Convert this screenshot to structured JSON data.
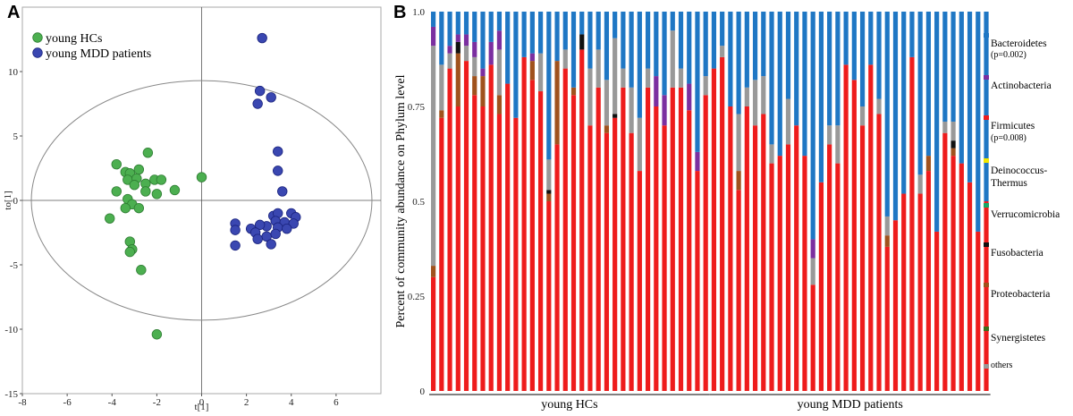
{
  "panels": {
    "a": "A",
    "b": "B"
  },
  "chart_data": [
    {
      "type": "scatter",
      "xlabel": "t[1]",
      "ylabel": "to[1]",
      "xlim": [
        -8,
        8
      ],
      "ylim": [
        -15,
        15
      ],
      "xticks": [
        "-8",
        "-6",
        "-4",
        "-2",
        "0",
        "2",
        "4",
        "6"
      ],
      "yticks": [
        "-15",
        "-10",
        "-5",
        "0",
        "5",
        "10"
      ],
      "ellipse": {
        "cx": 0,
        "cy": 0,
        "rx": 7.6,
        "ry": 9.3
      },
      "series": [
        {
          "name": "young HCs",
          "color": "#4caf50",
          "points": [
            [
              -3.8,
              2.8
            ],
            [
              -3.4,
              2.2
            ],
            [
              -3.2,
              2.1
            ],
            [
              -2.8,
              2.4
            ],
            [
              -3.3,
              1.6
            ],
            [
              -2.9,
              1.7
            ],
            [
              -3.0,
              1.2
            ],
            [
              -2.5,
              1.3
            ],
            [
              -2.1,
              1.6
            ],
            [
              -1.8,
              1.6
            ],
            [
              -2.4,
              3.7
            ],
            [
              -1.2,
              0.8
            ],
            [
              -2.5,
              0.7
            ],
            [
              -3.8,
              0.7
            ],
            [
              -2.0,
              0.5
            ],
            [
              -3.3,
              0.1
            ],
            [
              0,
              1.8
            ],
            [
              -3.1,
              -0.3
            ],
            [
              -3.4,
              -0.6
            ],
            [
              -2.8,
              -0.6
            ],
            [
              -4.1,
              -1.4
            ],
            [
              -3.2,
              -3.2
            ],
            [
              -3.1,
              -3.8
            ],
            [
              -3.2,
              -4.0
            ],
            [
              -2.7,
              -5.4
            ],
            [
              -2.0,
              -10.4
            ]
          ]
        },
        {
          "name": "young MDD patients",
          "color": "#3a47b1",
          "points": [
            [
              2.7,
              12.6
            ],
            [
              2.6,
              8.5
            ],
            [
              3.1,
              8.0
            ],
            [
              2.5,
              7.5
            ],
            [
              3.4,
              3.8
            ],
            [
              3.4,
              2.3
            ],
            [
              3.6,
              0.7
            ],
            [
              3.2,
              -1.2
            ],
            [
              3.4,
              -1.0
            ],
            [
              4.0,
              -1.0
            ],
            [
              4.2,
              -1.3
            ],
            [
              3.3,
              -1.6
            ],
            [
              3.7,
              -1.7
            ],
            [
              4.1,
              -1.8
            ],
            [
              2.9,
              -2.0
            ],
            [
              3.4,
              -2.1
            ],
            [
              1.5,
              -1.8
            ],
            [
              2.6,
              -1.9
            ],
            [
              3.8,
              -2.2
            ],
            [
              1.5,
              -2.3
            ],
            [
              2.2,
              -2.2
            ],
            [
              2.4,
              -2.5
            ],
            [
              2.9,
              -2.8
            ],
            [
              3.3,
              -2.6
            ],
            [
              2.5,
              -3.0
            ],
            [
              3.1,
              -3.4
            ],
            [
              1.5,
              -3.5
            ]
          ]
        }
      ]
    },
    {
      "type": "bar",
      "stacked": true,
      "ylabel": "Percent of community abundance on Phylum level",
      "ylim": [
        0,
        1
      ],
      "yticks": [
        "0",
        "0.25",
        "0.5",
        "0.75",
        "1.0"
      ],
      "groups": [
        {
          "label": "young HCs",
          "count": 34
        },
        {
          "label": "young MDD patients",
          "count": 34
        }
      ],
      "legend": [
        {
          "name": "Bacteroidetes",
          "note": "(p=0.002)",
          "color": "#1f77c4"
        },
        {
          "name": "Actinobacteria",
          "note": "",
          "color": "#7b2fa0"
        },
        {
          "name": "Firmicutes",
          "note": "(p=0.008)",
          "color": "#ee1c1c"
        },
        {
          "name": "Deinococcus-Thermus",
          "note": "",
          "color": "#f2e800"
        },
        {
          "name": "Verrucomicrobia",
          "note": "",
          "color": "#16a86a"
        },
        {
          "name": "Fusobacteria",
          "note": "",
          "color": "#111111"
        },
        {
          "name": "Proteobacteria",
          "note": "",
          "color": "#a0521d"
        },
        {
          "name": "Synergistetes",
          "note": "",
          "color": "#3b6e1b"
        },
        {
          "name": "others",
          "note": "",
          "color": "#999999"
        }
      ],
      "firmicutes": [
        0.3,
        0.72,
        0.85,
        0.75,
        0.87,
        0.78,
        0.75,
        0.86,
        0.73,
        0.81,
        0.72,
        0.88,
        0.82,
        0.79,
        0.5,
        0.65,
        0.85,
        0.78,
        0.9,
        0.7,
        0.8,
        0.68,
        0.72,
        0.8,
        0.68,
        0.58,
        0.8,
        0.75,
        0.7,
        0.8,
        0.8,
        0.74,
        0.58,
        0.78,
        0.85,
        0.88,
        0.75,
        0.53,
        0.75,
        0.7,
        0.73,
        0.6,
        0.62,
        0.65,
        0.7,
        0.62,
        0.28,
        0.55,
        0.65,
        0.6,
        0.86,
        0.82,
        0.7,
        0.86,
        0.73,
        0.38,
        0.45,
        0.52,
        0.88,
        0.52,
        0.58,
        0.42,
        0.68,
        0.62,
        0.6,
        0.55,
        0.42,
        0.5
      ],
      "proteobacteria": [
        0.03,
        0.02,
        0.0,
        0.14,
        0.0,
        0.05,
        0.08,
        0.0,
        0.05,
        0.0,
        0.0,
        0.0,
        0.05,
        0.0,
        0.02,
        0.22,
        0.0,
        0.02,
        0.0,
        0.0,
        0.0,
        0.02,
        0.0,
        0.0,
        0.0,
        0.0,
        0.0,
        0.0,
        0.0,
        0.0,
        0.0,
        0.0,
        0.0,
        0.0,
        0.0,
        0.0,
        0.0,
        0.05,
        0.0,
        0.0,
        0.0,
        0.0,
        0.0,
        0.0,
        0.0,
        0.0,
        0.0,
        0.0,
        0.0,
        0.0,
        0.0,
        0.0,
        0.0,
        0.0,
        0.0,
        0.03,
        0.0,
        0.0,
        0.0,
        0.0,
        0.04,
        0.0,
        0.0,
        0.02,
        0.0,
        0.0,
        0.0,
        0.0
      ],
      "fusobacteria": [
        0.0,
        0.0,
        0.0,
        0.03,
        0.0,
        0.0,
        0.0,
        0.0,
        0.0,
        0.0,
        0.0,
        0.0,
        0.0,
        0.0,
        0.01,
        0.0,
        0.0,
        0.0,
        0.04,
        0.0,
        0.0,
        0.0,
        0.01,
        0.0,
        0.0,
        0.0,
        0.0,
        0.0,
        0.0,
        0.0,
        0.0,
        0.0,
        0.0,
        0.0,
        0.0,
        0.0,
        0.0,
        0.0,
        0.0,
        0.0,
        0.0,
        0.0,
        0.0,
        0.0,
        0.0,
        0.0,
        0.0,
        0.0,
        0.0,
        0.0,
        0.0,
        0.0,
        0.0,
        0.0,
        0.0,
        0.0,
        0.0,
        0.0,
        0.0,
        0.0,
        0.0,
        0.0,
        0.0,
        0.02,
        0.0,
        0.0,
        0.0,
        0.0
      ],
      "actinobacteria": [
        0.05,
        0.0,
        0.02,
        0.02,
        0.03,
        0.04,
        0.02,
        0.06,
        0.05,
        0.0,
        0.0,
        0.0,
        0.02,
        0.0,
        0.0,
        0.0,
        0.0,
        0.0,
        0.0,
        0.0,
        0.0,
        0.0,
        0.0,
        0.0,
        0.0,
        0.0,
        0.0,
        0.08,
        0.08,
        0.0,
        0.0,
        0.07,
        0.05,
        0.0,
        0.0,
        0.0,
        0.0,
        0.0,
        0.0,
        0.0,
        0.0,
        0.0,
        0.0,
        0.0,
        0.0,
        0.0,
        0.05,
        0.0,
        0.0,
        0.0,
        0.0,
        0.0,
        0.0,
        0.0,
        0.0,
        0.0,
        0.0,
        0.0,
        0.0,
        0.0,
        0.0,
        0.0,
        0.0,
        0.0,
        0.0,
        0.0,
        0.0,
        0.0
      ],
      "others": [
        0.58,
        0.12,
        0.04,
        0.0,
        0.04,
        0.05,
        0.0,
        0.0,
        0.12,
        0.0,
        0.0,
        0.0,
        0.0,
        0.1,
        0.08,
        0.0,
        0.05,
        0.0,
        0.0,
        0.15,
        0.1,
        0.12,
        0.2,
        0.05,
        0.12,
        0.14,
        0.05,
        0.0,
        0.0,
        0.15,
        0.05,
        0.0,
        0.0,
        0.05,
        0.0,
        0.03,
        0.0,
        0.15,
        0.05,
        0.12,
        0.1,
        0.05,
        0.0,
        0.12,
        0.0,
        0.0,
        0.07,
        0.0,
        0.05,
        0.1,
        0.0,
        0.0,
        0.05,
        0.0,
        0.04,
        0.05,
        0.0,
        0.0,
        0.0,
        0.05,
        0.0,
        0.0,
        0.03,
        0.05,
        0.0,
        0.0,
        0.0,
        0.0
      ]
    }
  ]
}
